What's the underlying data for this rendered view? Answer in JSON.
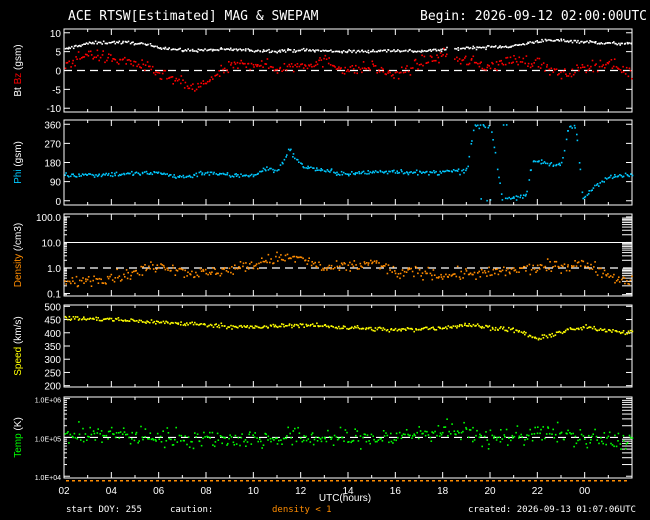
{
  "header": {
    "title": "ACE RTSW[Estimated] MAG & SWEPAM",
    "begin": "Begin: 2026-09-12 02:00:00UTC"
  },
  "footer": {
    "start_doy": "start DOY: 255",
    "caution_label": "caution:",
    "caution_text": "density < 1",
    "created": "created: 2026-09-13 01:07:06UTC"
  },
  "colors": {
    "bt": "#ffffff",
    "bz": "#ff0000",
    "phi": "#00c8ff",
    "density": "#ff8c00",
    "speed": "#ffff00",
    "temp": "#00ff00",
    "axis": "#ffffff",
    "background": "#000000"
  },
  "chart_data": {
    "type": "scatter",
    "x_label": "UTC(hours)",
    "x_ticks": [
      "02",
      "04",
      "06",
      "08",
      "10",
      "12",
      "14",
      "16",
      "18",
      "20",
      "22",
      "00"
    ],
    "x_range_hours": [
      0,
      24
    ],
    "panels": [
      {
        "id": "mag",
        "ylabel_parts": [
          {
            "text": "Bt",
            "color": "#ffffff"
          },
          {
            "text": "Bz",
            "color": "#ff0000"
          },
          {
            "text": "(gsm)",
            "color": "#ffffff"
          }
        ],
        "ylim": [
          -11,
          11
        ],
        "ticks": [
          "10",
          "5",
          "0",
          "-5",
          "-10"
        ],
        "tick_values": [
          10,
          5,
          0,
          -5,
          -10
        ],
        "dashed_ref": 0,
        "series": [
          {
            "name": "Bt",
            "color": "#ffffff",
            "noise": 0.35,
            "knots": [
              [
                0,
                5.5
              ],
              [
                0.5,
                6.5
              ],
              [
                1,
                7.2
              ],
              [
                2,
                7.5
              ],
              [
                3,
                7.3
              ],
              [
                4,
                6.2
              ],
              [
                5,
                5.3
              ],
              [
                6,
                5.4
              ],
              [
                7,
                5.6
              ],
              [
                8,
                5.3
              ],
              [
                9,
                5.2
              ],
              [
                10,
                5.4
              ],
              [
                11,
                5.2
              ],
              [
                12,
                5.0
              ],
              [
                13,
                5.2
              ],
              [
                14,
                5.3
              ],
              [
                15,
                5.1
              ],
              [
                16,
                5.5
              ],
              [
                17,
                6.0
              ],
              [
                18,
                6.2
              ],
              [
                19,
                6.5
              ],
              [
                20,
                7.8
              ],
              [
                21,
                8.0
              ],
              [
                22,
                7.6
              ],
              [
                23,
                7.2
              ],
              [
                24,
                7.0
              ]
            ]
          },
          {
            "name": "Bz",
            "color": "#ff0000",
            "noise": 1.3,
            "knots": [
              [
                0,
                1.5
              ],
              [
                1,
                4.5
              ],
              [
                2,
                3.0
              ],
              [
                3,
                2.0
              ],
              [
                4,
                -1.0
              ],
              [
                5,
                -3.5
              ],
              [
                5.5,
                -5
              ],
              [
                6,
                -3
              ],
              [
                7,
                1.0
              ],
              [
                8,
                2.0
              ],
              [
                9,
                0.5
              ],
              [
                10,
                1.5
              ],
              [
                11,
                2.5
              ],
              [
                12,
                0
              ],
              [
                13,
                1.0
              ],
              [
                14,
                -1.5
              ],
              [
                15,
                2.0
              ],
              [
                16,
                4.0
              ],
              [
                17,
                2.5
              ],
              [
                18,
                1.0
              ],
              [
                19,
                3.0
              ],
              [
                20,
                2.0
              ],
              [
                21,
                -1.5
              ],
              [
                22,
                1.0
              ],
              [
                23,
                2.0
              ],
              [
                24,
                -1.0
              ]
            ]
          }
        ]
      },
      {
        "id": "phi",
        "ylabel_parts": [
          {
            "text": "Phi",
            "color": "#00c8ff"
          },
          {
            "text": "(gsm)",
            "color": "#ffffff"
          }
        ],
        "ylim": [
          -20,
          380
        ],
        "ticks": [
          "360",
          "270",
          "180",
          "90",
          "0"
        ],
        "tick_values": [
          360,
          270,
          180,
          90,
          0
        ],
        "series": [
          {
            "name": "Phi",
            "color": "#00c8ff",
            "noise": 10,
            "knots": [
              [
                0,
                120
              ],
              [
                2,
                125
              ],
              [
                4,
                130
              ],
              [
                5,
                110
              ],
              [
                6,
                135
              ],
              [
                7,
                118
              ],
              [
                8,
                122
              ],
              [
                8.5,
                150
              ],
              [
                9,
                140
              ],
              [
                9.5,
                240
              ],
              [
                10,
                165
              ],
              [
                11,
                140
              ],
              [
                12,
                125
              ],
              [
                13,
                135
              ],
              [
                14,
                140
              ],
              [
                15,
                130
              ],
              [
                16,
                135
              ],
              [
                17,
                140
              ],
              [
                17.3,
                350
              ],
              [
                18,
                355
              ],
              [
                18.5,
                5
              ],
              [
                19,
                15
              ],
              [
                19.5,
                30
              ],
              [
                19.8,
                190
              ],
              [
                20.5,
                175
              ],
              [
                21,
                165
              ],
              [
                21.3,
                345
              ],
              [
                21.6,
                350
              ],
              [
                21.9,
                10
              ],
              [
                22,
                20
              ],
              [
                22.5,
                80
              ],
              [
                23,
                110
              ],
              [
                24,
                120
              ]
            ]
          }
        ]
      },
      {
        "id": "density",
        "ylabel_parts": [
          {
            "text": "Density",
            "color": "#ff8c00"
          },
          {
            "text": "(/cm3)",
            "color": "#ffffff"
          }
        ],
        "log": true,
        "ylim": [
          0.08,
          130
        ],
        "ticks": [
          "100.0",
          "10.0",
          "1.0",
          "0.1"
        ],
        "tick_values": [
          100,
          10,
          1,
          0.1
        ],
        "dashed_ref": 1.0,
        "solid_ref": 10,
        "series": [
          {
            "name": "Density",
            "color": "#ff8c00",
            "noise": 0.55,
            "knots": [
              [
                0,
                0.25
              ],
              [
                1,
                0.35
              ],
              [
                2,
                0.45
              ],
              [
                3,
                0.6
              ],
              [
                4,
                1.4
              ],
              [
                4.5,
                1.1
              ],
              [
                5,
                0.7
              ],
              [
                6,
                0.6
              ],
              [
                7,
                0.9
              ],
              [
                8,
                1.3
              ],
              [
                9,
                2.5
              ],
              [
                10,
                2.3
              ],
              [
                10.5,
                1.4
              ],
              [
                11,
                0.9
              ],
              [
                12,
                1.1
              ],
              [
                13,
                1.6
              ],
              [
                14,
                0.6
              ],
              [
                15,
                0.7
              ],
              [
                16,
                0.5
              ],
              [
                17,
                0.6
              ],
              [
                18,
                0.6
              ],
              [
                19,
                0.8
              ],
              [
                20,
                1.0
              ],
              [
                21,
                1.2
              ],
              [
                22,
                1.4
              ],
              [
                23,
                0.5
              ],
              [
                24,
                0.3
              ]
            ]
          }
        ]
      },
      {
        "id": "speed",
        "ylabel_parts": [
          {
            "text": "Speed",
            "color": "#ffff00"
          },
          {
            "text": "(km/s)",
            "color": "#ffffff"
          }
        ],
        "ylim": [
          195,
          505
        ],
        "ticks": [
          "500",
          "450",
          "400",
          "350",
          "300",
          "250",
          "200"
        ],
        "tick_values": [
          500,
          450,
          400,
          350,
          300,
          250,
          200
        ],
        "series": [
          {
            "name": "Speed",
            "color": "#ffff00",
            "noise": 7,
            "knots": [
              [
                0,
                455
              ],
              [
                2,
                450
              ],
              [
                4,
                440
              ],
              [
                6,
                430
              ],
              [
                8,
                420
              ],
              [
                10,
                430
              ],
              [
                12,
                420
              ],
              [
                14,
                410
              ],
              [
                16,
                420
              ],
              [
                17,
                430
              ],
              [
                18,
                420
              ],
              [
                19,
                410
              ],
              [
                19.5,
                395
              ],
              [
                20,
                375
              ],
              [
                21,
                405
              ],
              [
                22,
                420
              ],
              [
                23,
                410
              ],
              [
                24,
                400
              ]
            ]
          }
        ]
      },
      {
        "id": "temp",
        "ylabel_parts": [
          {
            "text": "Temp",
            "color": "#00ff00"
          },
          {
            "text": "(K)",
            "color": "#ffffff"
          }
        ],
        "log": true,
        "ylim": [
          9000,
          1100000
        ],
        "ticks": [
          "1.0E+06",
          "1.0E+05",
          "1.0E+04"
        ],
        "tick_values": [
          1000000,
          100000,
          10000
        ],
        "dashed_ref": 100000,
        "series": [
          {
            "name": "Temp",
            "color": "#00ff00",
            "noise": 0.6,
            "knots": [
              [
                0,
                110000
              ],
              [
                2,
                120000
              ],
              [
                4,
                100000
              ],
              [
                6,
                95000
              ],
              [
                8,
                90000
              ],
              [
                10,
                100000
              ],
              [
                12,
                95000
              ],
              [
                14,
                100000
              ],
              [
                16,
                150000
              ],
              [
                17,
                130000
              ],
              [
                18,
                90000
              ],
              [
                19,
                110000
              ],
              [
                20,
                130000
              ],
              [
                21,
                120000
              ],
              [
                22,
                90000
              ],
              [
                23,
                85000
              ],
              [
                24,
                80000
              ]
            ]
          }
        ]
      }
    ]
  }
}
